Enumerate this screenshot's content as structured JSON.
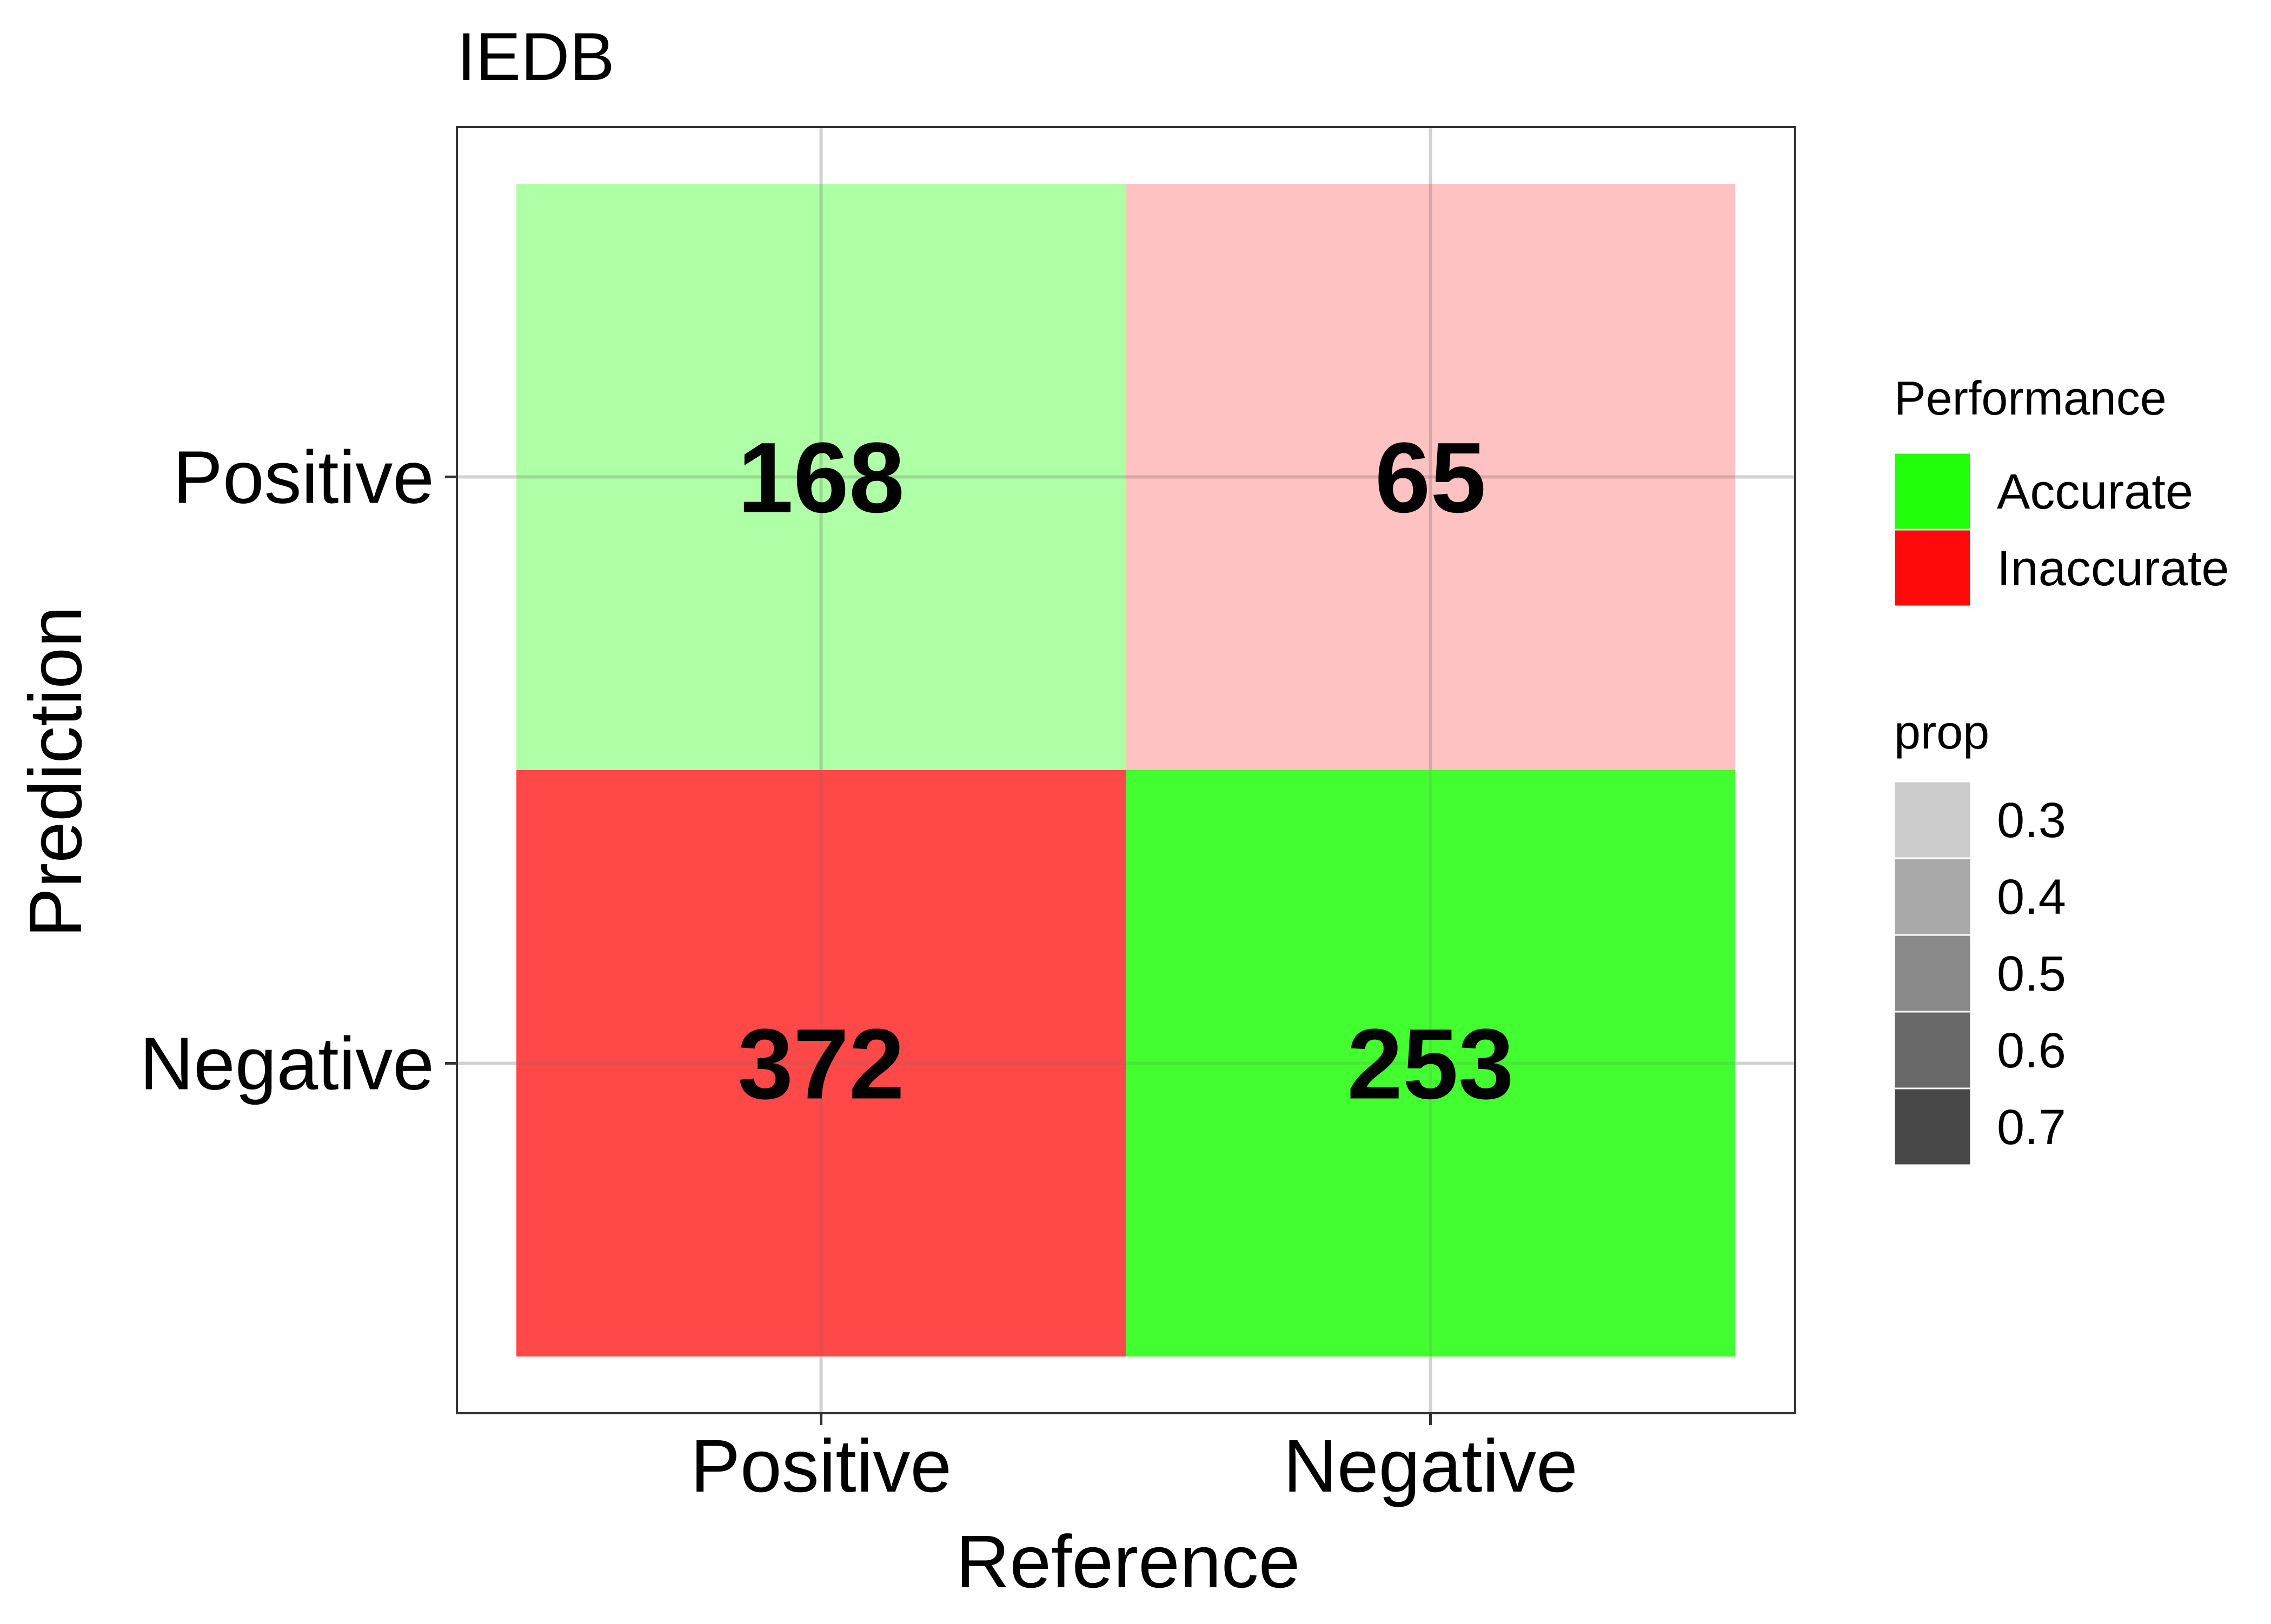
{
  "chart_data": {
    "type": "heatmap",
    "title": "IEDB",
    "xlabel": "Reference",
    "ylabel": "Prediction",
    "x_categories": [
      "Positive",
      "Negative"
    ],
    "y_categories": [
      "Positive",
      "Negative"
    ],
    "cells": [
      {
        "reference": "Positive",
        "prediction": "Positive",
        "value": 168,
        "performance": "Accurate",
        "prop": 0.31
      },
      {
        "reference": "Negative",
        "prediction": "Positive",
        "value": 65,
        "performance": "Inaccurate",
        "prop": 0.2
      },
      {
        "reference": "Positive",
        "prediction": "Negative",
        "value": 372,
        "performance": "Inaccurate",
        "prop": 0.69
      },
      {
        "reference": "Negative",
        "prediction": "Negative",
        "value": 253,
        "performance": "Accurate",
        "prop": 0.8
      }
    ],
    "legend": {
      "performance": {
        "title": "Performance",
        "items": [
          {
            "label": "Accurate",
            "color": "#22FF0A"
          },
          {
            "label": "Inaccurate",
            "color": "#FF0A0A"
          }
        ]
      },
      "prop": {
        "title": "prop",
        "items": [
          {
            "label": "0.3",
            "value": 0.3,
            "color": "#cbcbcb"
          },
          {
            "label": "0.4",
            "value": 0.4,
            "color": "#a9a9a9"
          },
          {
            "label": "0.5",
            "value": 0.5,
            "color": "#898989"
          },
          {
            "label": "0.6",
            "value": 0.6,
            "color": "#686868"
          },
          {
            "label": "0.7",
            "value": 0.7,
            "color": "#474747"
          }
        ]
      },
      "placement": "right"
    },
    "grid": true
  }
}
